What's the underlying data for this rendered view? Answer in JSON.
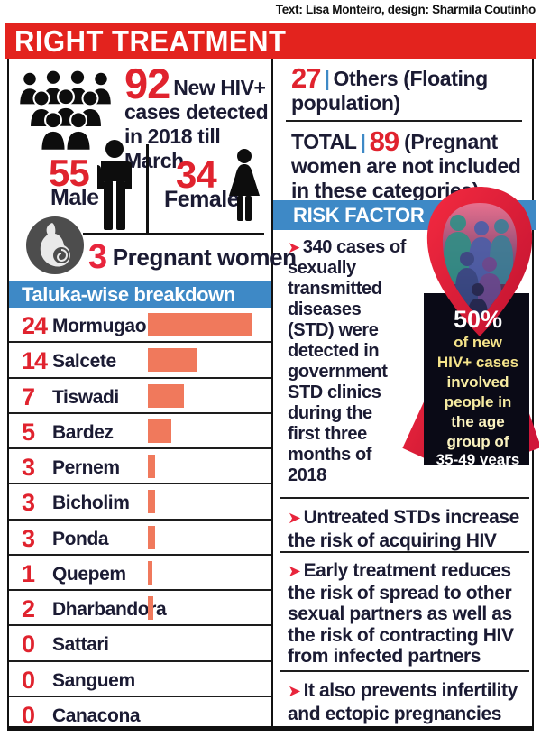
{
  "credit": "Text: Lisa Monteiro, design: Sharmila Coutinho",
  "title": "RIGHT TREATMENT",
  "stats": {
    "total_new": "92",
    "total_new_label": "New HIV+ cases detected in 2018 till March",
    "male": "55",
    "male_label": "Male",
    "female": "34",
    "female_label": "Female",
    "pregnant": "3",
    "pregnant_label": "Pregnant women"
  },
  "others": {
    "value": "27",
    "sep": "|",
    "label": "Others (Floating population)"
  },
  "total": {
    "label": "TOTAL",
    "sep": "|",
    "value": "89",
    "note": "(Pregnant women are not included in these categories)"
  },
  "taluka": {
    "header": "Taluka-wise breakdown",
    "rows": [
      {
        "value": "24",
        "name": "Mormugao",
        "bar": 115
      },
      {
        "value": "14",
        "name": "Salcete",
        "bar": 54
      },
      {
        "value": "7",
        "name": "Tiswadi",
        "bar": 40
      },
      {
        "value": "5",
        "name": "Bardez",
        "bar": 26
      },
      {
        "value": "3",
        "name": "Pernem",
        "bar": 8
      },
      {
        "value": "3",
        "name": "Bicholim",
        "bar": 8
      },
      {
        "value": "3",
        "name": "Ponda",
        "bar": 8
      },
      {
        "value": "1",
        "name": "Quepem",
        "bar": 5
      },
      {
        "value": "2",
        "name": "Dharbandora",
        "bar": 6
      },
      {
        "value": "0",
        "name": "Sattari",
        "bar": 0
      },
      {
        "value": "0",
        "name": "Sanguem",
        "bar": 0
      },
      {
        "value": "0",
        "name": "Canacona",
        "bar": 0
      }
    ]
  },
  "risk": {
    "header": "RISK FACTOR",
    "bullets": [
      "340 cases of sexually transmitted diseases (STD) were detected in government STD clinics during the first three months of 2018",
      "Untreated STDs increase the risk of acquiring HIV",
      "Early treatment reduces the risk of spread to other sexual partners as well as the risk of contracting HIV from infected partners",
      "It also prevents infertility and ectopic pregnancies"
    ]
  },
  "ribbon": {
    "pct": "50%",
    "lines": [
      "of new",
      "HIV+ cases",
      "involved",
      "people in",
      "the age",
      "group of",
      "35-49 years"
    ]
  },
  "icons": {
    "bullet_arrow": "➤"
  },
  "colors": {
    "banner_red": "#e3231e",
    "accent_red": "#e0232e",
    "blue": "#3e89c6",
    "bar_salmon": "#f0795c",
    "dark_text": "#1b1b33",
    "ribbon_red": "#e8253c",
    "ribbon_dark_box": "#0a0a16",
    "ribbon_yellow": "#f5e48a"
  },
  "chart_data": {
    "type": "bar",
    "orientation": "horizontal",
    "title": "Taluka-wise breakdown",
    "categories": [
      "Mormugao",
      "Salcete",
      "Tiswadi",
      "Bardez",
      "Pernem",
      "Bicholim",
      "Ponda",
      "Quepem",
      "Dharbandora",
      "Sattari",
      "Sanguem",
      "Canacona"
    ],
    "values": [
      24,
      14,
      7,
      5,
      3,
      3,
      3,
      1,
      2,
      0,
      0,
      0
    ],
    "xlabel": "",
    "ylabel": "",
    "xlim": [
      0,
      25
    ],
    "grid": false,
    "legend": "none",
    "bar_color": "#f0795c",
    "value_label_color": "#e0232e"
  }
}
